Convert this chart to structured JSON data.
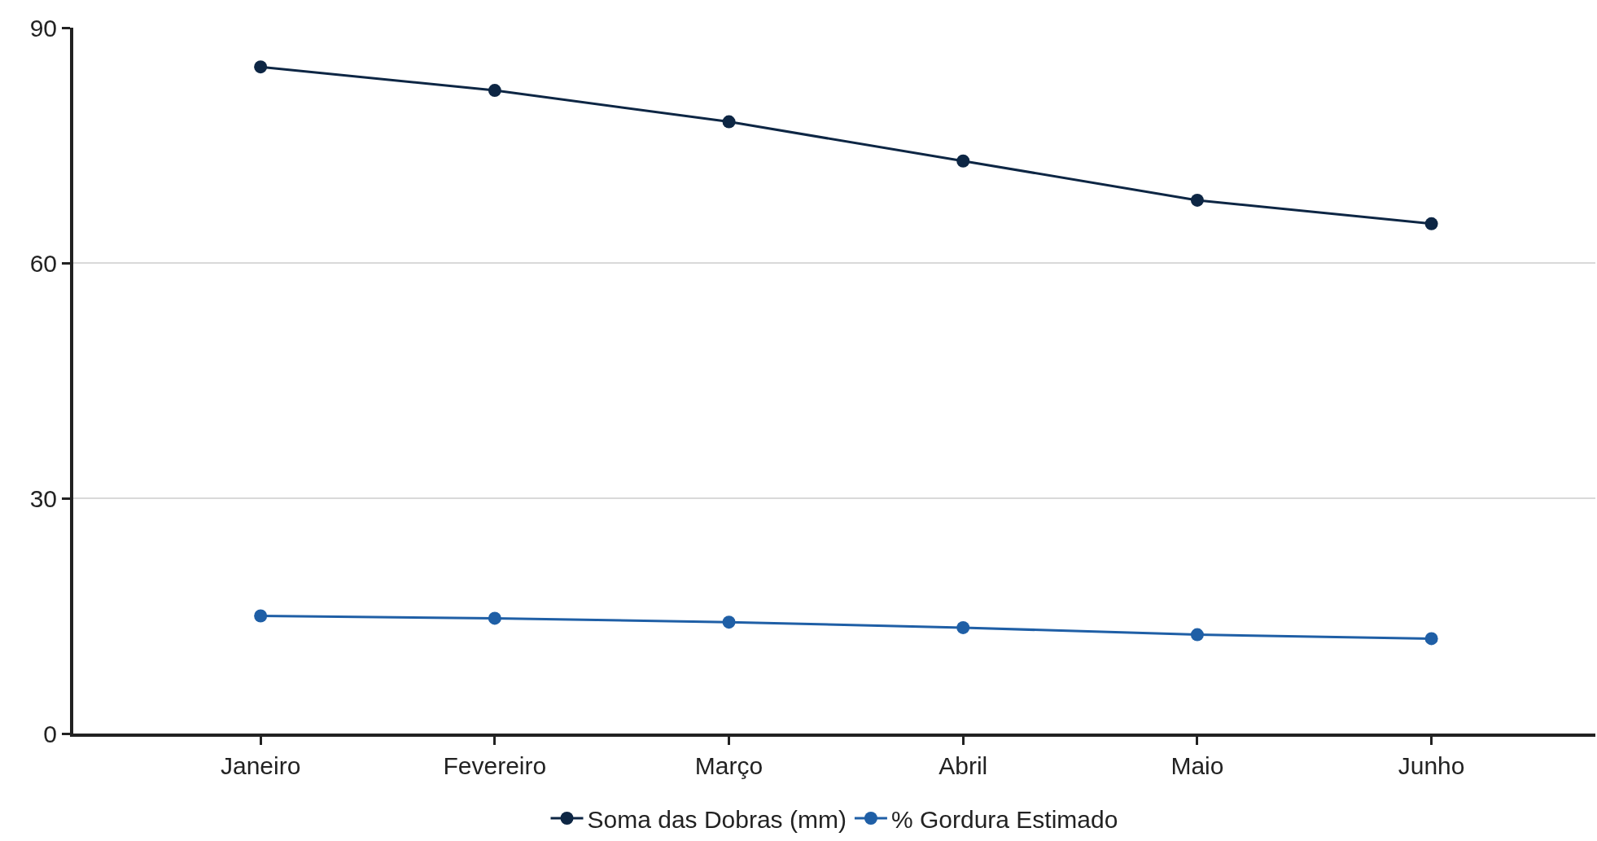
{
  "chart_data": {
    "type": "line",
    "categories": [
      "Janeiro",
      "Fevereiro",
      "Março",
      "Abril",
      "Maio",
      "Junho"
    ],
    "series": [
      {
        "name": "Soma das Dobras (mm)",
        "color": "#0d2644",
        "values": [
          85,
          82,
          78,
          73,
          68,
          65
        ]
      },
      {
        "name": "% Gordura Estimado",
        "color": "#1f5fa6",
        "values": [
          15,
          14.7,
          14.2,
          13.5,
          12.6,
          12.1
        ]
      }
    ],
    "ylim": [
      0,
      90
    ],
    "yticks": [
      0,
      30,
      60,
      90
    ],
    "grid": "y",
    "legend": "bottom",
    "marker": "circle",
    "line_style": "solid"
  }
}
